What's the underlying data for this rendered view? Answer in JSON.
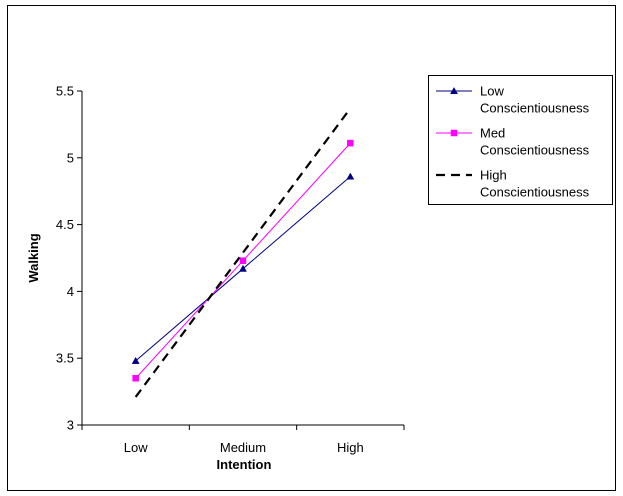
{
  "chart_data": {
    "type": "line",
    "title": "",
    "xlabel": "Intention",
    "ylabel": "Walking",
    "categories": [
      "Low",
      "Medium",
      "High"
    ],
    "ylim": [
      3,
      5.5
    ],
    "yticks": [
      "3",
      "3.5",
      "4",
      "4.5",
      "5",
      "5.5"
    ],
    "grid": false,
    "legend_position": "top-right",
    "series": [
      {
        "name": "Low Conscientiousness",
        "name_lines": [
          "Low",
          "Conscientiousness"
        ],
        "values": [
          3.48,
          4.17,
          4.86
        ],
        "color": "#000080",
        "marker": "triangle",
        "dash": "solid"
      },
      {
        "name": "Med Conscientiousness",
        "name_lines": [
          "Med",
          "Conscientiousness"
        ],
        "values": [
          3.35,
          4.23,
          5.11
        ],
        "color": "#ff00ff",
        "marker": "square",
        "dash": "solid"
      },
      {
        "name": "High Conscientiousness",
        "name_lines": [
          "High",
          "Conscientiousness"
        ],
        "values": [
          3.21,
          4.29,
          5.37
        ],
        "color": "#000000",
        "marker": "none",
        "dash": "dashed"
      }
    ]
  }
}
